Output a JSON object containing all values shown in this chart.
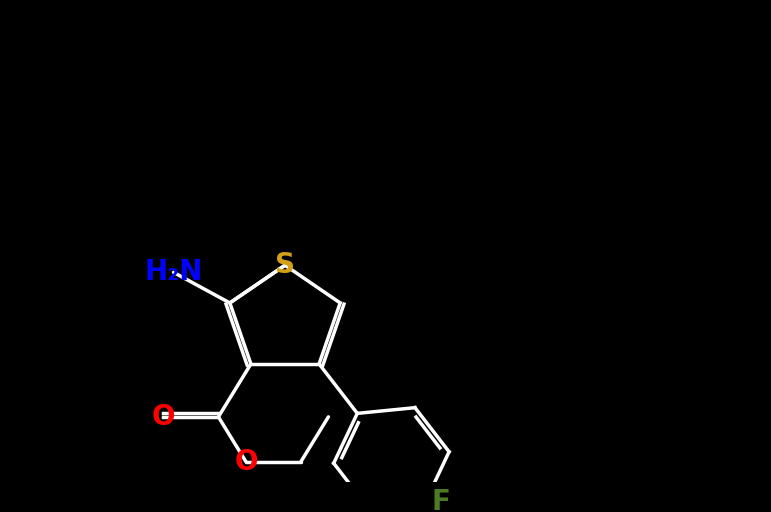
{
  "bg_color": "#000000",
  "bond_color": "#ffffff",
  "bond_width": 2.5,
  "atom_colors": {
    "O": "#ff0000",
    "S": "#d4a017",
    "N": "#0000ff",
    "F": "#4a7c23",
    "C": "#ffffff"
  },
  "font_size_atom": 18,
  "font_size_small": 14
}
